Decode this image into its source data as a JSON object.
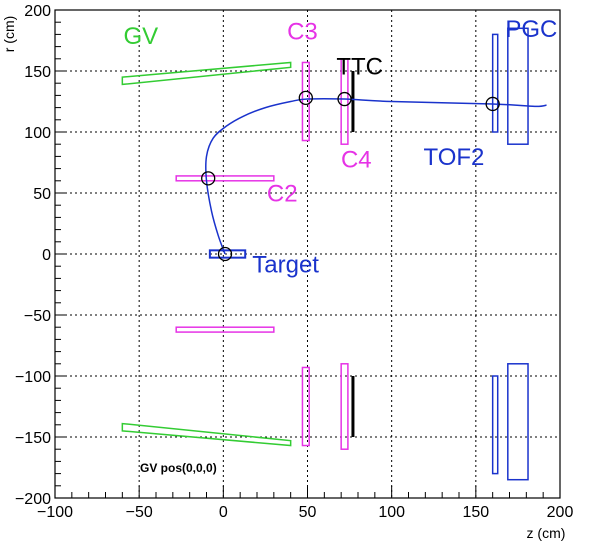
{
  "chart_data": {
    "type": "scatter",
    "title": "",
    "xlabel": "z (cm)",
    "ylabel": "r (cm)",
    "xlim": [
      -100,
      200
    ],
    "ylim": [
      -200,
      200
    ],
    "xticks": [
      -100,
      -50,
      0,
      50,
      100,
      150,
      200
    ],
    "yticks": [
      -200,
      -150,
      -100,
      -50,
      0,
      50,
      100,
      150,
      200
    ],
    "grid": true,
    "colors": {
      "gv": "#33cc33",
      "c2": "#e633e6",
      "c3": "#e633e6",
      "c4": "#e633e6",
      "ttc": "#000000",
      "tof2": "#1a33cc",
      "pgc": "#1a33cc",
      "target": "#1a33cc",
      "track": "#1a33cc"
    },
    "labels": [
      {
        "text": "GV",
        "z": -49,
        "r": 172,
        "color": "#33cc33"
      },
      {
        "text": "C3",
        "z": 47,
        "r": 176,
        "color": "#e633e6"
      },
      {
        "text": "TTC",
        "z": 81,
        "r": 147,
        "color": "#000000"
      },
      {
        "text": "PGC",
        "z": 183,
        "r": 178,
        "color": "#1a33cc"
      },
      {
        "text": "C4",
        "z": 79,
        "r": 71,
        "color": "#e633e6"
      },
      {
        "text": "TOF2",
        "z": 137,
        "r": 73,
        "color": "#1a33cc"
      },
      {
        "text": "C2",
        "z": 35,
        "r": 43,
        "color": "#e633e6"
      },
      {
        "text": "Target",
        "z": 37,
        "r": -15,
        "color": "#1a33cc"
      }
    ],
    "note": "GV pos(0,0,0)",
    "detectors": {
      "gv": [
        {
          "points": [
            [
              -60,
              145
            ],
            [
              40,
              157
            ],
            [
              40,
              153
            ],
            [
              -60,
              139
            ]
          ]
        },
        {
          "points": [
            [
              -60,
              -139
            ],
            [
              40,
              -153
            ],
            [
              40,
              -157
            ],
            [
              -60,
              -145
            ]
          ]
        }
      ],
      "c2": [
        {
          "z0": -28,
          "z1": 30,
          "r0": 60,
          "r1": 64
        },
        {
          "z0": -28,
          "z1": 30,
          "r0": -64,
          "r1": -60
        }
      ],
      "c3": [
        {
          "z0": 47,
          "z1": 51,
          "r0": 93,
          "r1": 157
        },
        {
          "z0": 47,
          "z1": 51,
          "r0": -157,
          "r1": -93
        }
      ],
      "c4": [
        {
          "z0": 70,
          "z1": 74,
          "r0": 90,
          "r1": 160
        },
        {
          "z0": 70,
          "z1": 74,
          "r0": -160,
          "r1": -90
        }
      ],
      "ttc": [
        {
          "z": 77,
          "r0": 100,
          "r1": 150
        },
        {
          "z": 77,
          "r0": -150,
          "r1": -100
        }
      ],
      "tof2": [
        {
          "z0": 160,
          "z1": 163,
          "r0": 100,
          "r1": 180
        },
        {
          "z0": 160,
          "z1": 163,
          "r0": -180,
          "r1": -100
        }
      ],
      "pgc": [
        {
          "z0": 169,
          "z1": 181,
          "r0": 90,
          "r1": 185
        },
        {
          "z0": 169,
          "z1": 181,
          "r0": -185,
          "r1": -90
        }
      ],
      "target": {
        "z0": -8,
        "z1": 13,
        "r0": -3,
        "r1": 3
      }
    },
    "track": [
      [
        1,
        0
      ],
      [
        -3,
        15
      ],
      [
        -7,
        35
      ],
      [
        -10,
        60
      ],
      [
        -10,
        80
      ],
      [
        -6,
        95
      ],
      [
        2,
        105
      ],
      [
        12,
        113
      ],
      [
        25,
        120
      ],
      [
        40,
        125
      ],
      [
        50,
        127
      ],
      [
        72,
        127
      ],
      [
        100,
        125
      ],
      [
        160,
        123
      ],
      [
        185,
        121
      ],
      [
        192,
        122
      ]
    ],
    "hits": [
      [
        1,
        0
      ],
      [
        -9,
        62
      ],
      [
        49,
        128
      ],
      [
        72,
        127
      ],
      [
        160,
        123
      ]
    ]
  }
}
